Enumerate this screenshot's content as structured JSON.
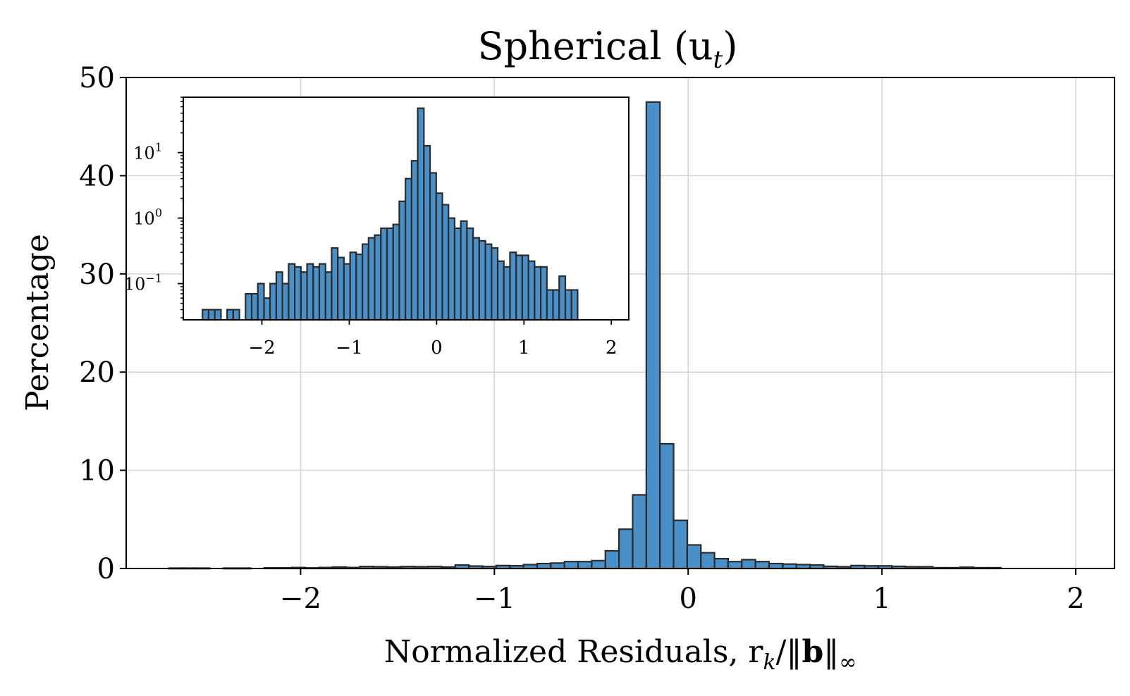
{
  "chart_data": [
    {
      "type": "bar",
      "title": "Spherical (u",
      "title_sub": "t",
      "title_close": ")",
      "xlabel": "Normalized Residuals, r",
      "xlabel_sub_k": "k",
      "xlabel_div": "/‖",
      "xlabel_b": "b",
      "xlabel_norm": "‖",
      "xlabel_sub_inf": "∞",
      "ylabel": "Percentage",
      "xlim": [
        -2.9,
        2.2
      ],
      "ylim": [
        0,
        50
      ],
      "grid": true,
      "xticks": [
        -2,
        -1,
        0,
        1,
        2
      ],
      "xtick_labels": [
        "−2",
        "−1",
        "0",
        "1",
        "2"
      ],
      "yticks": [
        0,
        10,
        20,
        30,
        40,
        50
      ],
      "ytick_labels": [
        "0",
        "10",
        "20",
        "30",
        "40",
        "50"
      ],
      "bin_start": -2.68,
      "bin_width": 0.0704,
      "values": [
        0.04,
        0.04,
        0.04,
        0.0,
        0.04,
        0.04,
        0.0,
        0.07,
        0.07,
        0.1,
        0.06,
        0.1,
        0.15,
        0.1,
        0.2,
        0.18,
        0.15,
        0.2,
        0.18,
        0.2,
        0.15,
        0.35,
        0.25,
        0.2,
        0.3,
        0.28,
        0.4,
        0.5,
        0.55,
        0.7,
        0.7,
        0.8,
        1.8,
        4.0,
        7.5,
        47.5,
        12.7,
        4.9,
        2.4,
        1.6,
        1.0,
        0.7,
        0.9,
        0.7,
        0.5,
        0.45,
        0.4,
        0.35,
        0.22,
        0.18,
        0.3,
        0.27,
        0.27,
        0.22,
        0.18,
        0.18,
        0.08,
        0.08,
        0.13,
        0.08,
        0.08
      ],
      "color": "#4a90c8",
      "edge_color": "#2b2b2b"
    },
    {
      "type": "bar",
      "role": "inset",
      "yscale": "log",
      "xlim": [
        -2.9,
        2.2
      ],
      "ylim": [
        0.028,
        70
      ],
      "xticks": [
        -2,
        -1,
        0,
        1,
        2
      ],
      "xtick_labels": [
        "−2",
        "−1",
        "0",
        "1",
        "2"
      ],
      "ytick_labels": [
        {
          "value": 10,
          "base": "10",
          "exp": "1"
        },
        {
          "value": 1,
          "base": "10",
          "exp": "0"
        },
        {
          "value": 0.1,
          "base": "10",
          "exp": "−1"
        }
      ],
      "bin_start": -2.68,
      "bin_width": 0.0704,
      "values": [
        0.04,
        0.04,
        0.04,
        0.0,
        0.04,
        0.04,
        0.0,
        0.07,
        0.07,
        0.1,
        0.06,
        0.1,
        0.15,
        0.1,
        0.2,
        0.18,
        0.15,
        0.2,
        0.18,
        0.2,
        0.15,
        0.35,
        0.25,
        0.2,
        0.3,
        0.28,
        0.4,
        0.5,
        0.55,
        0.7,
        0.7,
        0.8,
        1.8,
        4.0,
        7.5,
        47.5,
        12.7,
        4.9,
        2.4,
        1.6,
        1.0,
        0.7,
        0.9,
        0.7,
        0.5,
        0.45,
        0.4,
        0.35,
        0.22,
        0.18,
        0.3,
        0.27,
        0.27,
        0.22,
        0.18,
        0.18,
        0.08,
        0.08,
        0.13,
        0.08,
        0.08
      ],
      "color": "#4a90c8",
      "edge_color": "#2b2b2b"
    }
  ]
}
